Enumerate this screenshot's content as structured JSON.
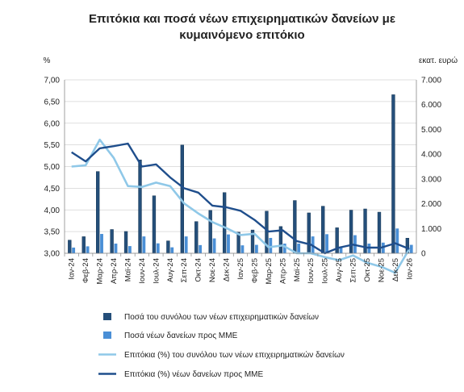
{
  "chart_data": {
    "type": "bar-line",
    "title_lines": [
      "Επιτόκια και ποσά νέων επιχειρηματικών δανείων με",
      "κυμαινόμενο επιτόκιο"
    ],
    "ylabel_left": "%",
    "ylabel_right": "εκατ. ευρώ",
    "ylim_left": [
      3.0,
      7.0
    ],
    "ylim_right": [
      0,
      7000
    ],
    "yticks_left": [
      "3,00",
      "3,50",
      "4,00",
      "4,50",
      "5,00",
      "5,50",
      "6,00",
      "6,50",
      "7,00"
    ],
    "yticks_right": [
      "0",
      "1.000",
      "2.000",
      "3.000",
      "4.000",
      "5.000",
      "6.000",
      "7.000"
    ],
    "categories": [
      "Ιαν-24",
      "Φεβ-24",
      "Μαρ-24",
      "Απρ-24",
      "Μαϊ-24",
      "Ιουν-24",
      "Ιουλ-24",
      "Αυγ-24",
      "Σεπ-24",
      "Οκτ-24",
      "Νοε-24",
      "Δεκ-24",
      "Ιαν-25",
      "Φεβ-25",
      "Μαρ-25",
      "Απρ-25",
      "Μαϊ-25",
      "Ιουν-25",
      "Ιουλ-25",
      "Αυγ-25",
      "Σεπ-25",
      "Οκτ-25",
      "Νοε-25",
      "Δεκ-25",
      "Ιαν-26"
    ],
    "series": [
      {
        "name": "Ποσά του συνόλου των νέων επιχειρηματικών δανείων",
        "kind": "bar",
        "axis": "right",
        "color": "#254f7a",
        "values": [
          530,
          670,
          3300,
          960,
          880,
          3770,
          2320,
          500,
          4370,
          1280,
          1730,
          2450,
          850,
          940,
          1700,
          1080,
          2130,
          1630,
          1900,
          1030,
          1740,
          1790,
          1660,
          6400,
          610
        ]
      },
      {
        "name": "Ποσά νέων δανείων προς ΜΜΕ",
        "kind": "bar",
        "axis": "right",
        "color": "#4a8fd6",
        "values": [
          230,
          280,
          780,
          390,
          290,
          680,
          400,
          240,
          680,
          330,
          600,
          760,
          320,
          340,
          620,
          390,
          390,
          680,
          770,
          270,
          730,
          390,
          430,
          1000,
          340
        ]
      },
      {
        "name": "Επιτόκια (%) του συνόλου των νέων επιχειρηματικών δανείων",
        "kind": "line",
        "axis": "left",
        "color": "#8fc8e8",
        "values": [
          5.0,
          5.03,
          5.62,
          5.2,
          4.55,
          4.53,
          4.63,
          4.55,
          4.15,
          3.92,
          3.72,
          3.58,
          3.42,
          3.45,
          3.14,
          3.18,
          3.0,
          3.0,
          2.91,
          2.84,
          2.95,
          2.78,
          2.69,
          2.55,
          3.1
        ]
      },
      {
        "name": "Επιτόκια (%) νέων δανείων προς ΜΜΕ",
        "kind": "line",
        "axis": "left",
        "color": "#1f4e8c",
        "values": [
          5.33,
          5.12,
          5.42,
          5.47,
          5.53,
          5.0,
          5.05,
          4.75,
          4.5,
          4.4,
          4.1,
          4.06,
          3.98,
          3.77,
          3.5,
          3.53,
          3.28,
          3.2,
          3.0,
          3.13,
          3.2,
          3.13,
          3.13,
          3.23,
          3.1
        ]
      }
    ],
    "legend_position": "bottom"
  }
}
